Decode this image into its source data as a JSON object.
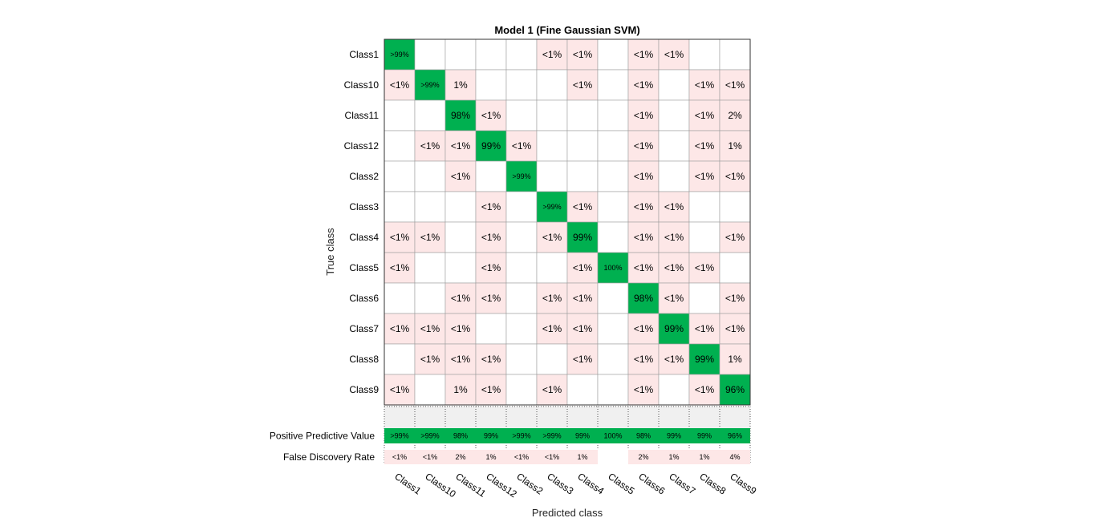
{
  "chart_data": {
    "type": "heatmap",
    "title": "Model 1 (Fine Gaussian SVM)",
    "xlabel": "Predicted class",
    "ylabel": "True class",
    "true_classes": [
      "Class1",
      "Class10",
      "Class11",
      "Class12",
      "Class2",
      "Class3",
      "Class4",
      "Class5",
      "Class6",
      "Class7",
      "Class8",
      "Class9"
    ],
    "predicted_classes": [
      "Class1",
      "Class10",
      "Class11",
      "Class12",
      "Class2",
      "Class3",
      "Class4",
      "Class5",
      "Class6",
      "Class7",
      "Class8",
      "Class9"
    ],
    "cells": [
      [
        ">99%",
        "",
        "",
        "",
        "",
        "<1%",
        "<1%",
        "",
        "<1%",
        "<1%",
        "",
        ""
      ],
      [
        "<1%",
        ">99%",
        "1%",
        "",
        "",
        "",
        "<1%",
        "",
        "<1%",
        "",
        "<1%",
        "<1%"
      ],
      [
        "",
        "",
        "98%",
        "<1%",
        "",
        "",
        "",
        "",
        "<1%",
        "",
        "<1%",
        "2%"
      ],
      [
        "",
        "<1%",
        "<1%",
        "99%",
        "<1%",
        "",
        "",
        "",
        "<1%",
        "",
        "<1%",
        "1%"
      ],
      [
        "",
        "",
        "<1%",
        "",
        ">99%",
        "",
        "",
        "",
        "<1%",
        "",
        "<1%",
        "<1%"
      ],
      [
        "",
        "",
        "",
        "<1%",
        "",
        ">99%",
        "<1%",
        "",
        "<1%",
        "<1%",
        "",
        ""
      ],
      [
        "<1%",
        "<1%",
        "",
        "<1%",
        "",
        "<1%",
        "99%",
        "",
        "<1%",
        "<1%",
        "",
        "<1%"
      ],
      [
        "<1%",
        "",
        "",
        "<1%",
        "",
        "",
        "<1%",
        "100%",
        "<1%",
        "<1%",
        "<1%",
        ""
      ],
      [
        "",
        "",
        "<1%",
        "<1%",
        "",
        "<1%",
        "<1%",
        "",
        "98%",
        "<1%",
        "",
        "<1%"
      ],
      [
        "<1%",
        "<1%",
        "<1%",
        "",
        "",
        "<1%",
        "<1%",
        "",
        "<1%",
        "99%",
        "<1%",
        "<1%"
      ],
      [
        "",
        "<1%",
        "<1%",
        "<1%",
        "",
        "",
        "<1%",
        "",
        "<1%",
        "<1%",
        "99%",
        "1%"
      ],
      [
        "<1%",
        "",
        "1%",
        "<1%",
        "",
        "<1%",
        "",
        "",
        "<1%",
        "",
        "<1%",
        "96%"
      ]
    ],
    "summary_rows": [
      {
        "label": "Positive Predictive Value",
        "values": [
          ">99%",
          ">99%",
          "98%",
          "99%",
          ">99%",
          ">99%",
          "99%",
          "100%",
          "98%",
          "99%",
          "99%",
          "96%"
        ]
      },
      {
        "label": "False Discovery Rate",
        "values": [
          "<1%",
          "<1%",
          "2%",
          "1%",
          "<1%",
          "<1%",
          "1%",
          "",
          "2%",
          "1%",
          "1%",
          "4%"
        ]
      }
    ],
    "colors": {
      "diagonal": "#00B050",
      "off_diagonal": "#FDE7E7",
      "empty": "#FFFFFF",
      "separator_band": "#F0F0F0",
      "grid": "#9E9E9E"
    }
  }
}
